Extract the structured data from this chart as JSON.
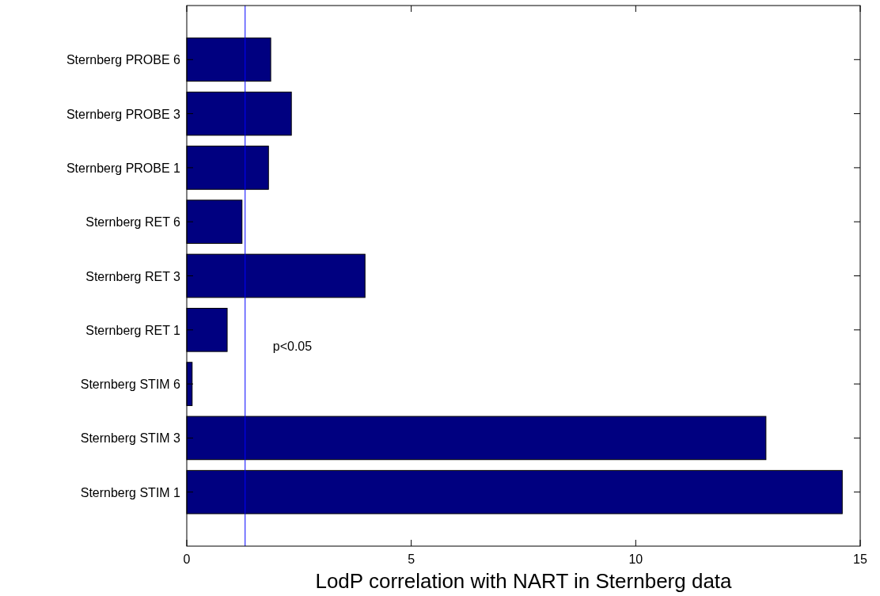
{
  "chart_data": {
    "type": "bar",
    "orientation": "horizontal",
    "xlabel": "LodP correlation with NART in Sternberg data",
    "categories": [
      "Sternberg PROBE 6",
      "Sternberg PROBE 3",
      "Sternberg PROBE 1",
      "Sternberg RET 6",
      "Sternberg RET 3",
      "Sternberg RET 1",
      "Sternberg STIM 6",
      "Sternberg STIM 3",
      "Sternberg STIM 1"
    ],
    "values": [
      1.87,
      2.33,
      1.82,
      1.23,
      3.97,
      0.9,
      0.12,
      12.9,
      14.6
    ],
    "color": "#000080",
    "xlim": [
      0,
      15
    ],
    "xticks": [
      0,
      5,
      10,
      15
    ],
    "ref_lines": [
      {
        "axis": "x",
        "value": 1.3,
        "label": "p<0.05",
        "color": "#0000ff"
      }
    ],
    "grid": false
  }
}
